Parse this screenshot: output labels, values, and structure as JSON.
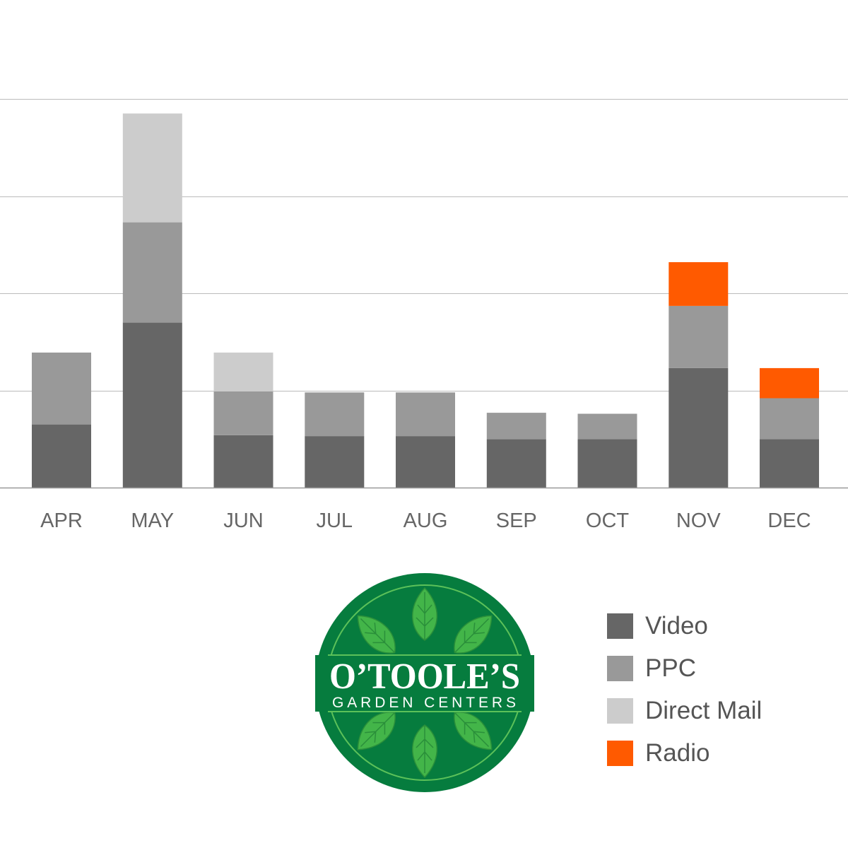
{
  "chart_data": {
    "type": "bar",
    "stacked": true,
    "categories": [
      "APR",
      "MAY",
      "JUN",
      "JUL",
      "AUG",
      "SEP",
      "OCT",
      "NOV",
      "DEC"
    ],
    "series": [
      {
        "name": "Video",
        "color": "#666666",
        "values": [
          0.65,
          1.7,
          0.54,
          0.53,
          0.53,
          0.5,
          0.5,
          1.23,
          0.5
        ]
      },
      {
        "name": "PPC",
        "color": "#999999",
        "values": [
          0.74,
          1.03,
          0.45,
          0.45,
          0.45,
          0.27,
          0.26,
          0.64,
          0.42
        ]
      },
      {
        "name": "Direct Mail",
        "color": "#cccccc",
        "values": [
          0,
          1.12,
          0.4,
          0,
          0,
          0,
          0,
          0,
          0
        ]
      },
      {
        "name": "Radio",
        "color": "#ff5a00",
        "values": [
          0,
          0,
          0,
          0,
          0,
          0,
          0,
          0.45,
          0.31
        ]
      }
    ],
    "ylim": [
      0,
      4
    ],
    "grid": true,
    "legend_position": "bottom-right"
  },
  "logo": {
    "name": "O’TOOLE’S",
    "tagline": "GARDEN CENTERS"
  }
}
